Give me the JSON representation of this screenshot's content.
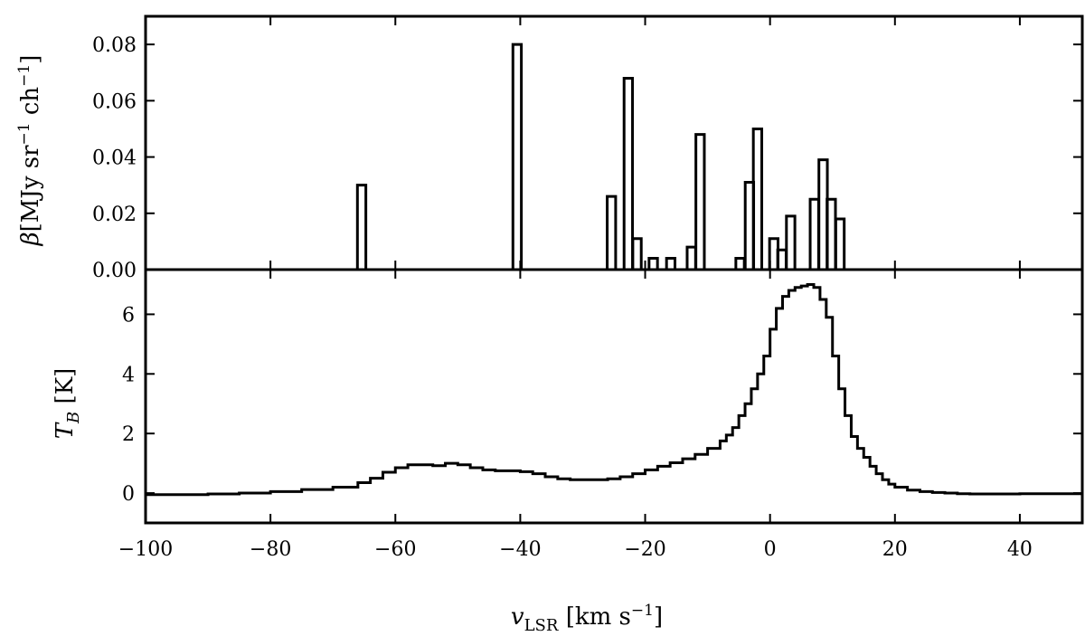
{
  "chart_data": [
    {
      "type": "bar",
      "panel": "top",
      "style": "step-histogram",
      "ylabel_symbol": "β",
      "ylabel_units": "[MJy sr",
      "ylabel_exp": "−1",
      "ylabel_units2": " ch",
      "ylabel_exp2": "−1",
      "ylabel_close": "]",
      "xlim": [
        -100,
        50
      ],
      "ylim": [
        0,
        0.09
      ],
      "yticks": [
        0.0,
        0.02,
        0.04,
        0.06,
        0.08
      ],
      "ytick_labels": [
        "0.00",
        "0.02",
        "0.04",
        "0.06",
        "0.08"
      ],
      "bin_width": 1.35,
      "bars": [
        {
          "x": -65.4,
          "y": 0.03
        },
        {
          "x": -40.5,
          "y": 0.08
        },
        {
          "x": -25.4,
          "y": 0.026
        },
        {
          "x": -22.7,
          "y": 0.068
        },
        {
          "x": -21.3,
          "y": 0.011
        },
        {
          "x": -18.7,
          "y": 0.004
        },
        {
          "x": -15.9,
          "y": 0.004
        },
        {
          "x": -12.6,
          "y": 0.008
        },
        {
          "x": -11.2,
          "y": 0.048
        },
        {
          "x": -4.8,
          "y": 0.004
        },
        {
          "x": -3.3,
          "y": 0.031
        },
        {
          "x": -2.0,
          "y": 0.05
        },
        {
          "x": 0.6,
          "y": 0.011
        },
        {
          "x": 1.9,
          "y": 0.007
        },
        {
          "x": 3.3,
          "y": 0.019
        },
        {
          "x": 7.1,
          "y": 0.025
        },
        {
          "x": 8.5,
          "y": 0.039
        },
        {
          "x": 9.8,
          "y": 0.025
        },
        {
          "x": 11.2,
          "y": 0.018
        }
      ],
      "color": "#000000"
    },
    {
      "type": "line",
      "panel": "bottom",
      "style": "step",
      "ylabel_symbol": "T",
      "ylabel_sub": "B",
      "ylabel_units": " [K]",
      "xlabel_symbol": "v",
      "xlabel_sub": "LSR",
      "xlabel_units": " [km s",
      "xlabel_exp": "−1",
      "xlabel_close": "]",
      "xlim": [
        -100,
        50
      ],
      "ylim": [
        -1,
        7.5
      ],
      "yticks": [
        0,
        2,
        4,
        6
      ],
      "ytick_labels": [
        "0",
        "2",
        "4",
        "6"
      ],
      "xticks": [
        -100,
        -80,
        -60,
        -40,
        -20,
        0,
        20,
        40
      ],
      "xtick_labels": [
        "−100",
        "−80",
        "−60",
        "−40",
        "−20",
        "0",
        "20",
        "40"
      ],
      "x": [
        -100,
        -95,
        -90,
        -85,
        -80,
        -75,
        -70,
        -66,
        -64,
        -62,
        -60,
        -58,
        -56,
        -54,
        -52,
        -50,
        -48,
        -46,
        -44,
        -42,
        -40,
        -38,
        -36,
        -34,
        -32,
        -30,
        -28,
        -26,
        -24,
        -22,
        -20,
        -18,
        -16,
        -14,
        -12,
        -10,
        -8,
        -7,
        -6,
        -5,
        -4,
        -3,
        -2,
        -1,
        0,
        1,
        2,
        3,
        4,
        5,
        6,
        7,
        8,
        9,
        10,
        11,
        12,
        13,
        14,
        15,
        16,
        17,
        18,
        19,
        20,
        22,
        24,
        26,
        28,
        30,
        32,
        35,
        40,
        45,
        50
      ],
      "y": [
        -0.05,
        -0.05,
        -0.03,
        0.0,
        0.05,
        0.12,
        0.2,
        0.35,
        0.5,
        0.7,
        0.85,
        0.95,
        0.95,
        0.92,
        1.0,
        0.95,
        0.85,
        0.78,
        0.75,
        0.75,
        0.72,
        0.65,
        0.55,
        0.48,
        0.45,
        0.45,
        0.45,
        0.48,
        0.55,
        0.65,
        0.78,
        0.9,
        1.02,
        1.15,
        1.3,
        1.5,
        1.75,
        1.95,
        2.2,
        2.6,
        3.0,
        3.5,
        4.0,
        4.6,
        5.5,
        6.2,
        6.6,
        6.8,
        6.9,
        6.95,
        7.0,
        6.9,
        6.5,
        5.9,
        4.6,
        3.5,
        2.6,
        1.9,
        1.5,
        1.2,
        0.9,
        0.65,
        0.45,
        0.3,
        0.2,
        0.1,
        0.05,
        0.02,
        0.0,
        -0.02,
        -0.03,
        -0.03,
        -0.02,
        -0.02,
        -0.02
      ],
      "color": "#000000"
    }
  ]
}
